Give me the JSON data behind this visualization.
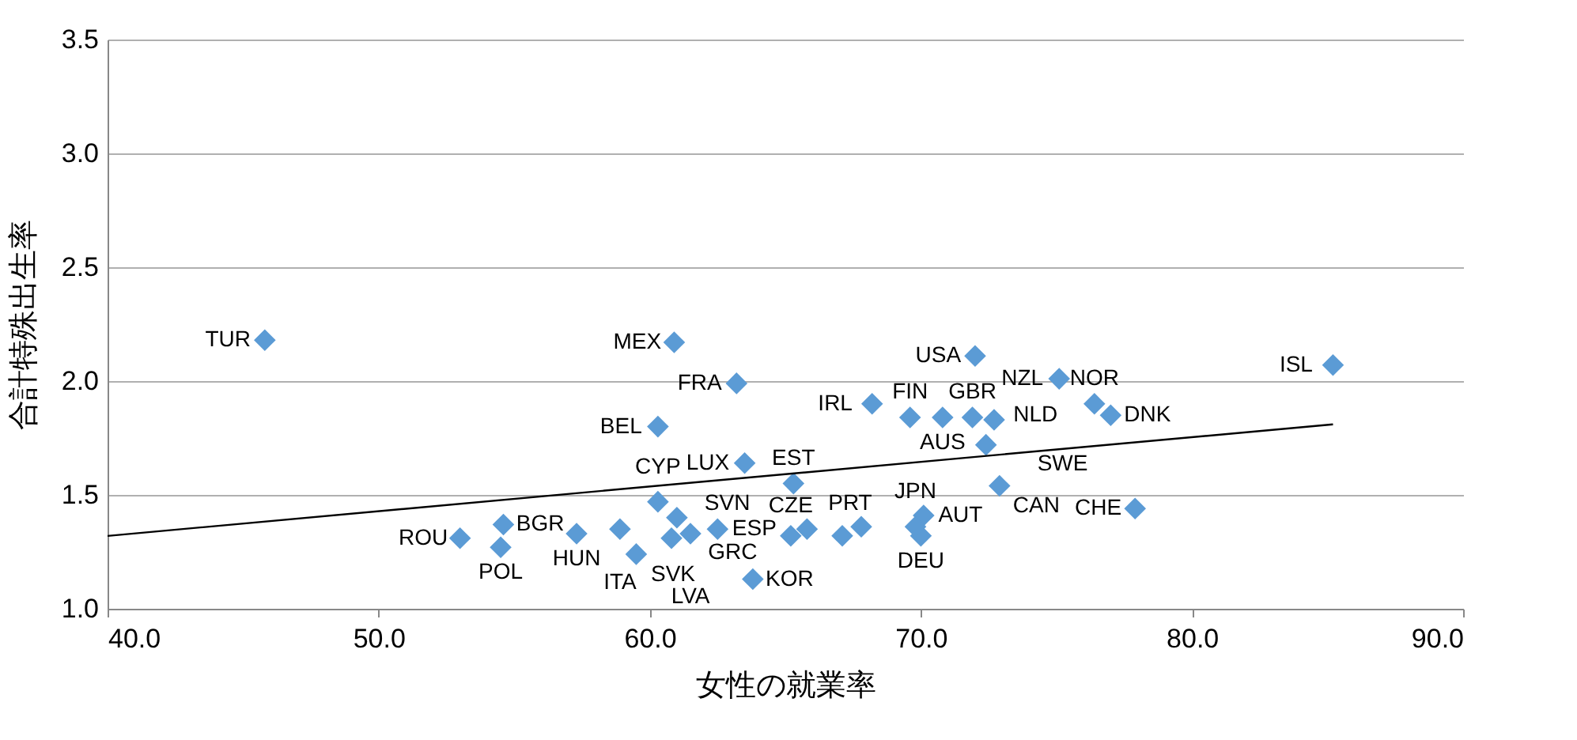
{
  "chart_data": {
    "type": "scatter",
    "xlabel": "女性の就業率",
    "ylabel": "合計特殊出生率",
    "xlim": [
      40,
      90
    ],
    "xticks": [
      {
        "value": 40,
        "label": "40.0"
      },
      {
        "value": 50,
        "label": "50.0"
      },
      {
        "value": 60,
        "label": "60.0"
      },
      {
        "value": 70,
        "label": "70.0"
      },
      {
        "value": 80,
        "label": "80.0"
      },
      {
        "value": 90,
        "label": "90.0"
      }
    ],
    "ylim": [
      1.0,
      3.5
    ],
    "yticks": [
      {
        "value": 1,
        "label": "1.0"
      },
      {
        "value": 1.5,
        "label": "1.5"
      },
      {
        "value": 2,
        "label": "2.0"
      },
      {
        "value": 2.5,
        "label": "2.5"
      },
      {
        "value": 3,
        "label": "3.0"
      },
      {
        "value": 3.5,
        "label": "3.5"
      }
    ],
    "grid": "y",
    "marker": "diamond",
    "series": [
      {
        "color": "#5b9bd5",
        "x": [
          45.8,
          60.9,
          63.2,
          60.3,
          63.5,
          65.3,
          60.3,
          61.0,
          53.0,
          54.5,
          54.6,
          57.3,
          58.9,
          59.5,
          60.8,
          61.5,
          65.2,
          62.5,
          65.8,
          67.1,
          67.8,
          70.0,
          70.1,
          69.8,
          63.8,
          72.0,
          75.1,
          68.2,
          69.6,
          70.8,
          71.9,
          72.7,
          76.4,
          77.0,
          72.4,
          72.9,
          77.9,
          85.2
        ],
        "values": [
          2.18,
          2.17,
          1.99,
          1.8,
          1.64,
          1.55,
          1.47,
          1.4,
          1.31,
          1.27,
          1.37,
          1.33,
          1.35,
          1.24,
          1.31,
          1.33,
          1.32,
          1.35,
          1.35,
          1.32,
          1.36,
          1.32,
          1.41,
          1.36,
          1.13,
          2.11,
          2.01,
          1.9,
          1.84,
          1.84,
          1.84,
          1.83,
          1.9,
          1.85,
          1.72,
          1.54,
          1.44,
          2.07
        ]
      },
      {
        "type": "line",
        "marker": "none",
        "color": "#000000",
        "x": [
          40,
          85.2
        ],
        "values": [
          1.32,
          1.81
        ]
      }
    ],
    "annotations": [
      {
        "text": "TUR",
        "x": 45.8,
        "y": 2.18
      },
      {
        "text": "MEX",
        "x": 60.9,
        "y": 2.17
      },
      {
        "text": "FRA",
        "x": 63.2,
        "y": 1.99
      },
      {
        "text": "BEL",
        "x": 60.3,
        "y": 1.8
      },
      {
        "text": "LUX",
        "x": 63.5,
        "y": 1.64
      },
      {
        "text": "EST",
        "x": 65.3,
        "y": 1.55
      },
      {
        "text": "CYP",
        "x": 60.3,
        "y": 1.47
      },
      {
        "text": "GRC",
        "x": 61.0,
        "y": 1.4
      },
      {
        "text": "ROU",
        "x": 53.0,
        "y": 1.31
      },
      {
        "text": "POL",
        "x": 54.5,
        "y": 1.27
      },
      {
        "text": "BGR",
        "x": 54.6,
        "y": 1.37
      },
      {
        "text": "HUN",
        "x": 57.3,
        "y": 1.33
      },
      {
        "text": "ITA",
        "x": 58.9,
        "y": 1.35
      },
      {
        "text": "SVK",
        "x": 59.5,
        "y": 1.24
      },
      {
        "text": "SVN",
        "x": 60.8,
        "y": 1.31
      },
      {
        "text": "LVA",
        "x": 61.5,
        "y": 1.33
      },
      {
        "text": "CZE",
        "x": 65.2,
        "y": 1.32
      },
      {
        "text": "ESP",
        "x": 62.5,
        "y": 1.35
      },
      {
        "text": "PRT",
        "x": 65.8,
        "y": 1.35
      },
      {
        "text": "DEU",
        "x": 70.0,
        "y": 1.32
      },
      {
        "text": "AUT",
        "x": 70.1,
        "y": 1.41
      },
      {
        "text": "JPN",
        "x": 69.8,
        "y": 1.36
      },
      {
        "text": "KOR",
        "x": 63.8,
        "y": 1.13
      },
      {
        "text": "USA",
        "x": 72.0,
        "y": 2.11
      },
      {
        "text": "NZL",
        "x": 75.1,
        "y": 2.01
      },
      {
        "text": "IRL",
        "x": 68.2,
        "y": 1.9
      },
      {
        "text": "FIN",
        "x": 69.6,
        "y": 1.84
      },
      {
        "text": "AUS",
        "x": 70.8,
        "y": 1.84
      },
      {
        "text": "GBR",
        "x": 71.9,
        "y": 1.84
      },
      {
        "text": "SWE",
        "x": 72.7,
        "y": 1.83
      },
      {
        "text": "NOR",
        "x": 76.4,
        "y": 1.9
      },
      {
        "text": "DNK",
        "x": 77.0,
        "y": 1.85
      },
      {
        "text": "NLD",
        "x": 72.4,
        "y": 1.72
      },
      {
        "text": "CAN",
        "x": 72.9,
        "y": 1.54
      },
      {
        "text": "CHE",
        "x": 77.9,
        "y": 1.44
      },
      {
        "text": "ISL",
        "x": 85.2,
        "y": 2.07
      }
    ]
  }
}
